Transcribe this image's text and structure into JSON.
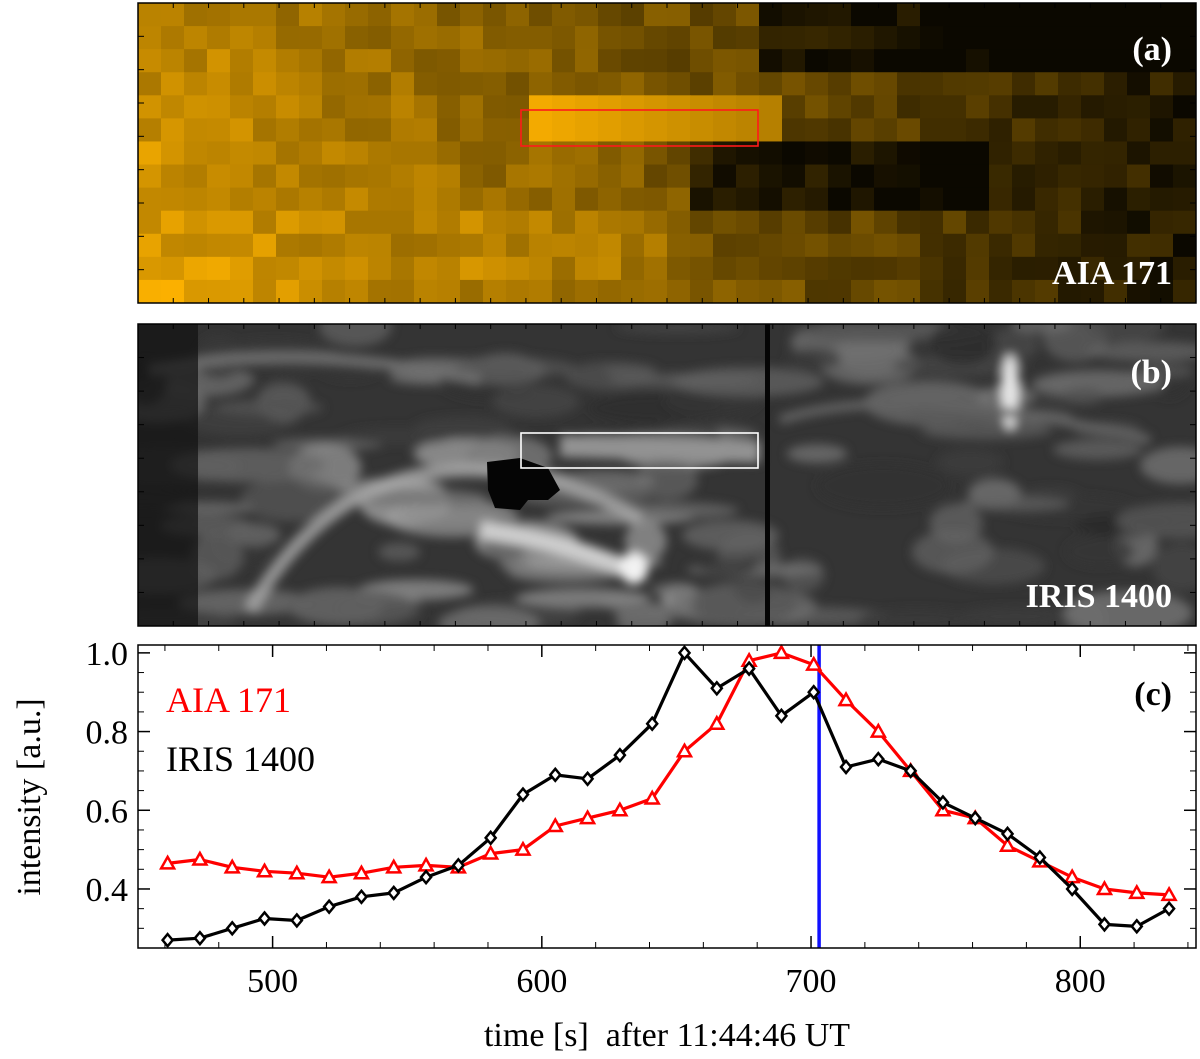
{
  "panels": {
    "a": {
      "label": "(a)",
      "instrument": "AIA 171",
      "colors": {
        "bright": "#ffb300",
        "dark": "#0b0800",
        "box": "#ff1a1a"
      }
    },
    "b": {
      "label": "(b)",
      "instrument": "IRIS 1400",
      "colors": {
        "bright": "#f2f2f2",
        "dark": "#050505",
        "box": "#ffffff"
      }
    }
  },
  "chart_data": {
    "type": "line",
    "panel_label": "(c)",
    "xlabel": "time [s]  after 11:44:46 UT",
    "ylabel": "intensity [a.u.]",
    "xlim": [
      450,
      843
    ],
    "ylim": [
      0.25,
      1.02
    ],
    "xticks": [
      500,
      600,
      700,
      800
    ],
    "xtick_labels": [
      "500",
      "600",
      "700",
      "800"
    ],
    "yticks": [
      0.4,
      0.6,
      0.8,
      1.0
    ],
    "ytick_labels": [
      "0.4",
      "0.6",
      "0.8",
      "1.0"
    ],
    "marker_line": {
      "x": 703,
      "color": "#1010ff"
    },
    "series": [
      {
        "name": "AIA 171",
        "color": "#ff0000",
        "marker": "triangle",
        "x": [
          461,
          473,
          485,
          497,
          509,
          521,
          533,
          545,
          557,
          569,
          581,
          593,
          605,
          617,
          629,
          641,
          653,
          665,
          677,
          689,
          701,
          713,
          725,
          737,
          749,
          761,
          773,
          785,
          797,
          809,
          821,
          833
        ],
        "y": [
          0.465,
          0.475,
          0.455,
          0.445,
          0.44,
          0.43,
          0.44,
          0.455,
          0.46,
          0.455,
          0.49,
          0.5,
          0.56,
          0.58,
          0.6,
          0.63,
          0.75,
          0.82,
          0.98,
          1.0,
          0.97,
          0.88,
          0.8,
          0.7,
          0.6,
          0.58,
          0.51,
          0.47,
          0.43,
          0.4,
          0.39,
          0.385
        ]
      },
      {
        "name": "IRIS 1400",
        "color": "#000000",
        "marker": "diamond",
        "x": [
          461,
          473,
          485,
          497,
          509,
          521,
          533,
          545,
          557,
          569,
          581,
          593,
          605,
          617,
          629,
          641,
          653,
          665,
          677,
          689,
          701,
          713,
          725,
          737,
          749,
          761,
          773,
          785,
          797,
          809,
          821,
          833
        ],
        "y": [
          0.27,
          0.275,
          0.3,
          0.325,
          0.32,
          0.355,
          0.38,
          0.39,
          0.43,
          0.46,
          0.53,
          0.64,
          0.69,
          0.68,
          0.74,
          0.82,
          1.0,
          0.91,
          0.96,
          0.84,
          0.9,
          0.71,
          0.73,
          0.7,
          0.62,
          0.58,
          0.54,
          0.48,
          0.4,
          0.31,
          0.305,
          0.35
        ]
      }
    ]
  }
}
